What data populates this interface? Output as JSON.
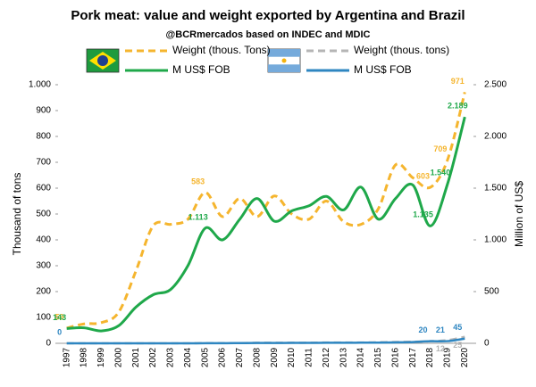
{
  "chart_data": {
    "type": "line",
    "title": "Pork meat: value and weight exported by Argentina and Brazil",
    "subtitle": "@BCRmercados based on INDEC and MDIC",
    "y_label": "Thousand of tons",
    "y2_label": "Million of US$",
    "categories": [
      "1997",
      "1998",
      "1999",
      "2000",
      "2001",
      "2002",
      "2003",
      "2004",
      "2005",
      "2006",
      "2007",
      "2008",
      "2009",
      "2010",
      "2011",
      "2012",
      "2013",
      "2014",
      "2015",
      "2016",
      "2017",
      "2018",
      "2019",
      "2020"
    ],
    "ylim": [
      0,
      1000
    ],
    "yticks": [
      0,
      100,
      200,
      300,
      400,
      500,
      600,
      700,
      800,
      900,
      {
        "value": 1000,
        "label": "1.000"
      }
    ],
    "y2lim": [
      0,
      2500
    ],
    "y2ticks": [
      0,
      500,
      {
        "value": 1000,
        "label": "1.000"
      },
      {
        "value": 1500,
        "label": "1.500"
      },
      {
        "value": 2000,
        "label": "2.000"
      },
      {
        "value": 2500,
        "label": "2.500"
      }
    ],
    "grid": false,
    "series": [
      {
        "name": "Weight (thous. Tons)",
        "color": "#f5b52e",
        "style": "dashed",
        "values": [
          59,
          75,
          80,
          120,
          280,
          455,
          460,
          480,
          583,
          490,
          560,
          490,
          570,
          500,
          480,
          550,
          470,
          460,
          520,
          690,
          640,
          603,
          709,
          971
        ],
        "value_labels": [
          "59",
          null,
          null,
          null,
          null,
          null,
          null,
          null,
          "583",
          null,
          null,
          null,
          null,
          null,
          null,
          null,
          null,
          null,
          null,
          null,
          null,
          "603",
          "709",
          "971"
        ]
      },
      {
        "name": "M US$ FOB",
        "color": "#1fa84a",
        "style": "solid",
        "axis": "y2",
        "values": [
          143,
          150,
          120,
          170,
          350,
          470,
          520,
          750,
          1113,
          1000,
          1200,
          1400,
          1180,
          1280,
          1330,
          1420,
          1290,
          1510,
          1200,
          1400,
          1530,
          1135,
          1540,
          2189
        ],
        "value_labels": [
          "143",
          null,
          null,
          null,
          null,
          null,
          null,
          null,
          "1.113",
          null,
          null,
          null,
          null,
          null,
          null,
          null,
          null,
          null,
          null,
          null,
          null,
          "1.135",
          "1.540",
          "2.189"
        ]
      },
      {
        "name": "Weight (thous. tons)",
        "color": "#b5b5b5",
        "style": "dashed",
        "values": [
          0,
          0,
          0,
          0,
          0,
          0,
          0,
          0,
          1,
          1,
          1,
          2,
          2,
          2,
          2,
          3,
          3,
          3,
          4,
          5,
          6,
          8,
          12,
          25
        ],
        "value_labels": [
          null,
          null,
          null,
          null,
          null,
          null,
          null,
          null,
          null,
          null,
          null,
          null,
          null,
          null,
          null,
          null,
          null,
          null,
          null,
          null,
          null,
          null,
          "12",
          "25"
        ]
      },
      {
        "name": "M US$ FOB",
        "color": "#2e86c1",
        "style": "solid",
        "axis": "y2",
        "values": [
          0,
          0,
          0,
          0,
          0,
          0,
          0,
          0,
          1,
          1,
          2,
          3,
          3,
          4,
          4,
          5,
          5,
          6,
          7,
          9,
          12,
          20,
          21,
          45
        ],
        "value_labels": [
          "0",
          null,
          null,
          null,
          null,
          null,
          null,
          null,
          null,
          null,
          null,
          null,
          null,
          null,
          null,
          null,
          null,
          null,
          null,
          null,
          null,
          "20",
          "21",
          "45"
        ]
      }
    ]
  }
}
